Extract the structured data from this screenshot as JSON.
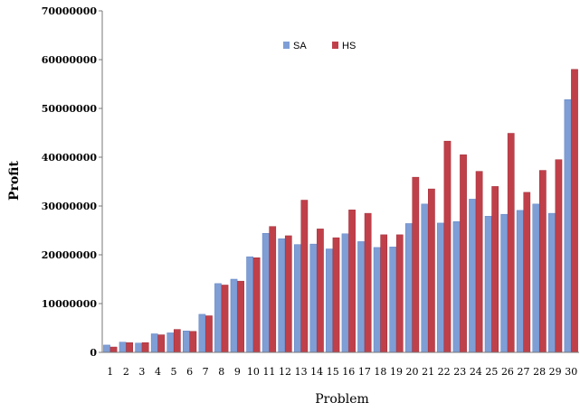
{
  "chart_data": {
    "type": "bar",
    "title": "",
    "xlabel": "Problem",
    "ylabel": "Profit",
    "ylim": [
      0,
      70000000
    ],
    "yticks": [
      "0",
      "10000000",
      "20000000",
      "30000000",
      "40000000",
      "50000000",
      "60000000",
      "70000000"
    ],
    "categories": [
      "1",
      "2",
      "3",
      "4",
      "5",
      "6",
      "7",
      "8",
      "9",
      "10",
      "11",
      "12",
      "13",
      "14",
      "15",
      "16",
      "17",
      "18",
      "19",
      "20",
      "21",
      "22",
      "23",
      "24",
      "25",
      "26",
      "27",
      "28",
      "29",
      "30"
    ],
    "legend_position": "top-center",
    "grid": false,
    "series": [
      {
        "name": "SA",
        "color": "#7F9ED6",
        "values": [
          1500000,
          2100000,
          1900000,
          3800000,
          4000000,
          4400000,
          7800000,
          14100000,
          15000000,
          19600000,
          24400000,
          23300000,
          22100000,
          22200000,
          21200000,
          24300000,
          22700000,
          21500000,
          21600000,
          26400000,
          30400000,
          26500000,
          26800000,
          31400000,
          27900000,
          28300000,
          29100000,
          30400000,
          28500000,
          51800000
        ]
      },
      {
        "name": "HS",
        "color": "#C0404A",
        "values": [
          1100000,
          2000000,
          2000000,
          3600000,
          4700000,
          4300000,
          7500000,
          13800000,
          14600000,
          19400000,
          25800000,
          23900000,
          31200000,
          25300000,
          23500000,
          29200000,
          28500000,
          24100000,
          24100000,
          35900000,
          33500000,
          43300000,
          40500000,
          37100000,
          34000000,
          44900000,
          32800000,
          37300000,
          39500000,
          58000000
        ]
      }
    ]
  }
}
